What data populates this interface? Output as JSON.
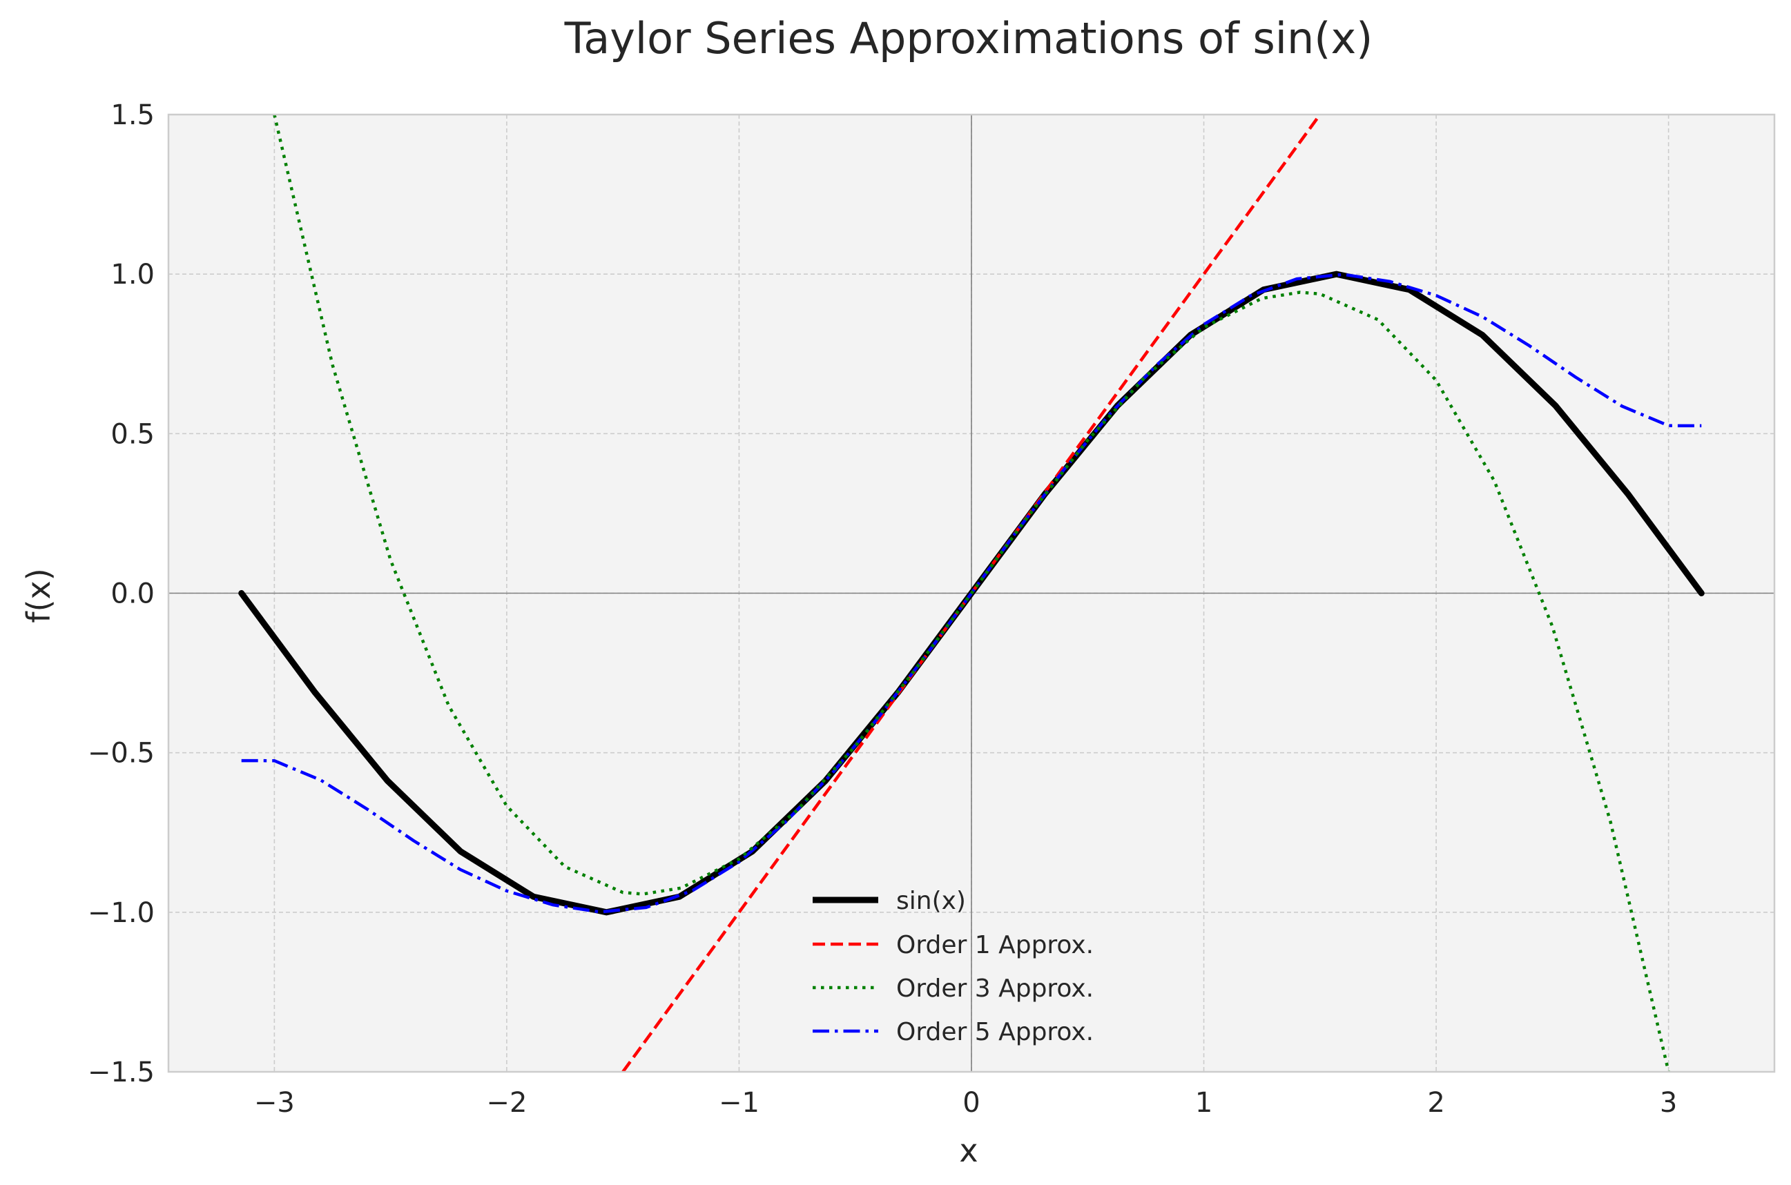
{
  "chart_data": {
    "type": "line",
    "title": "Taylor Series Approximations of sin(x)",
    "xlabel": "x",
    "ylabel": "f(x)",
    "xlim": [
      -3.4557,
      3.4557
    ],
    "ylim": [
      -1.5,
      1.5
    ],
    "x_ticks": [
      -3,
      -2,
      -1,
      0,
      1,
      2,
      3
    ],
    "y_ticks": [
      -1.5,
      -1.0,
      -0.5,
      0.0,
      0.5,
      1.0,
      1.5
    ],
    "x_tick_labels": [
      "−3",
      "−2",
      "−1",
      "0",
      "1",
      "2",
      "3"
    ],
    "y_tick_labels": [
      "−1.5",
      "−1.0",
      "−0.5",
      "0.0",
      "0.5",
      "1.0",
      "1.5"
    ],
    "grid": true,
    "legend_position": "lower-center",
    "series": [
      {
        "name": "sin(x)",
        "color": "#000000",
        "style": "solid",
        "points": [
          [
            -3.1416,
            0.0
          ],
          [
            -2.8274,
            -0.309
          ],
          [
            -2.5133,
            -0.5878
          ],
          [
            -2.1991,
            -0.809
          ],
          [
            -1.885,
            -0.9511
          ],
          [
            -1.5708,
            -1.0
          ],
          [
            -1.2566,
            -0.9511
          ],
          [
            -0.9425,
            -0.809
          ],
          [
            -0.6283,
            -0.5878
          ],
          [
            -0.3142,
            -0.309
          ],
          [
            0.0,
            0.0
          ],
          [
            0.3142,
            0.309
          ],
          [
            0.6283,
            0.5878
          ],
          [
            0.9425,
            0.809
          ],
          [
            1.2566,
            0.9511
          ],
          [
            1.5708,
            1.0
          ],
          [
            1.885,
            0.9511
          ],
          [
            2.1991,
            0.809
          ],
          [
            2.5133,
            0.5878
          ],
          [
            2.8274,
            0.309
          ],
          [
            3.1416,
            0.0
          ]
        ]
      },
      {
        "name": "Order 1 Approx.",
        "color": "#ff0000",
        "style": "dashed",
        "points": [
          [
            -1.5,
            -1.5
          ],
          [
            -1.0,
            -1.0
          ],
          [
            -0.5,
            -0.5
          ],
          [
            0.0,
            0.0
          ],
          [
            0.5,
            0.5
          ],
          [
            1.0,
            1.0
          ],
          [
            1.5,
            1.5
          ]
        ]
      },
      {
        "name": "Order 3 Approx.",
        "color": "#008000",
        "style": "dotted",
        "points": [
          [
            -3.0,
            1.5
          ],
          [
            -2.75,
            0.716
          ],
          [
            -2.5,
            0.104
          ],
          [
            -2.25,
            -0.352
          ],
          [
            -2.0,
            -0.667
          ],
          [
            -1.75,
            -0.857
          ],
          [
            -1.5,
            -0.938
          ],
          [
            -1.414,
            -0.943
          ],
          [
            -1.25,
            -0.924
          ],
          [
            -1.0,
            -0.833
          ],
          [
            -0.75,
            -0.68
          ],
          [
            -0.5,
            -0.479
          ],
          [
            -0.25,
            -0.247
          ],
          [
            0.0,
            0.0
          ],
          [
            0.25,
            0.247
          ],
          [
            0.5,
            0.479
          ],
          [
            0.75,
            0.68
          ],
          [
            1.0,
            0.833
          ],
          [
            1.25,
            0.924
          ],
          [
            1.414,
            0.943
          ],
          [
            1.5,
            0.938
          ],
          [
            1.75,
            0.857
          ],
          [
            2.0,
            0.667
          ],
          [
            2.25,
            0.352
          ],
          [
            2.5,
            -0.104
          ],
          [
            2.75,
            -0.716
          ],
          [
            3.0,
            -1.5
          ]
        ]
      },
      {
        "name": "Order 5 Approx.",
        "color": "#0000ff",
        "style": "dashdot",
        "points": [
          [
            -3.1416,
            -0.5247
          ],
          [
            -3.0,
            -0.525
          ],
          [
            -2.8,
            -0.586
          ],
          [
            -2.6,
            -0.677
          ],
          [
            -2.4,
            -0.776
          ],
          [
            -2.2,
            -0.866
          ],
          [
            -2.0,
            -0.933
          ],
          [
            -1.8,
            -0.977
          ],
          [
            -1.6,
            -0.999
          ],
          [
            -1.4,
            -0.985
          ],
          [
            -1.2,
            -0.932
          ],
          [
            -1.0,
            -0.842
          ],
          [
            -0.8,
            -0.717
          ],
          [
            -0.6,
            -0.565
          ],
          [
            -0.4,
            -0.389
          ],
          [
            -0.2,
            -0.199
          ],
          [
            0.0,
            0.0
          ],
          [
            0.2,
            0.199
          ],
          [
            0.4,
            0.389
          ],
          [
            0.6,
            0.565
          ],
          [
            0.8,
            0.717
          ],
          [
            1.0,
            0.842
          ],
          [
            1.2,
            0.932
          ],
          [
            1.4,
            0.985
          ],
          [
            1.6,
            0.999
          ],
          [
            1.8,
            0.977
          ],
          [
            2.0,
            0.933
          ],
          [
            2.2,
            0.866
          ],
          [
            2.4,
            0.776
          ],
          [
            2.6,
            0.677
          ],
          [
            2.8,
            0.586
          ],
          [
            3.0,
            0.525
          ],
          [
            3.1416,
            0.5247
          ]
        ]
      }
    ]
  }
}
